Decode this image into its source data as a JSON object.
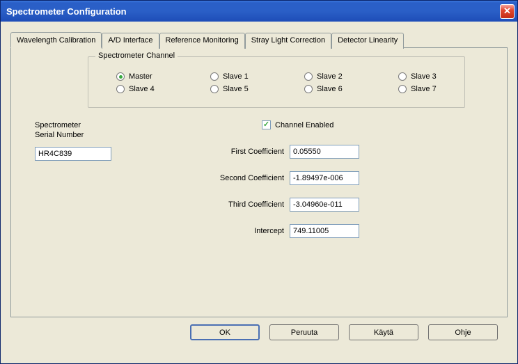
{
  "window": {
    "title": "Spectrometer Configuration"
  },
  "colors": {
    "titlebar_bg": "#2a5fc7",
    "panel_bg": "#ece9d8",
    "close_bg": "#e1472f",
    "input_border": "#7f9db9",
    "radio_sel": "#39a93f"
  },
  "tabs": {
    "items": [
      {
        "label": "Wavelength Calibration",
        "active": true
      },
      {
        "label": "A/D Interface",
        "active": false
      },
      {
        "label": "Reference Monitoring",
        "active": false
      },
      {
        "label": "Stray Light Correction",
        "active": false
      },
      {
        "label": "Detector Linearity",
        "active": false
      }
    ]
  },
  "channel_group": {
    "title": "Spectrometer Channel",
    "options": [
      {
        "label": "Master",
        "selected": true
      },
      {
        "label": "Slave 1",
        "selected": false
      },
      {
        "label": "Slave 2",
        "selected": false
      },
      {
        "label": "Slave 3",
        "selected": false
      },
      {
        "label": "Slave 4",
        "selected": false
      },
      {
        "label": "Slave 5",
        "selected": false
      },
      {
        "label": "Slave 6",
        "selected": false
      },
      {
        "label": "Slave 7",
        "selected": false
      }
    ]
  },
  "serial": {
    "label_line1": "Spectrometer",
    "label_line2": "Serial Number",
    "value": "HR4C839"
  },
  "channel_enabled": {
    "label": "Channel Enabled",
    "checked": true
  },
  "coefficients": {
    "first": {
      "label": "First Coefficient",
      "value": "0.05550"
    },
    "second": {
      "label": "Second Coefficient",
      "value": "-1.89497e-006"
    },
    "third": {
      "label": "Third Coefficient",
      "value": "-3.04960e-011"
    },
    "intercept": {
      "label": "Intercept",
      "value": "749.11005"
    }
  },
  "buttons": {
    "ok": "OK",
    "cancel": "Peruuta",
    "apply": "Käytä",
    "help": "Ohje"
  }
}
